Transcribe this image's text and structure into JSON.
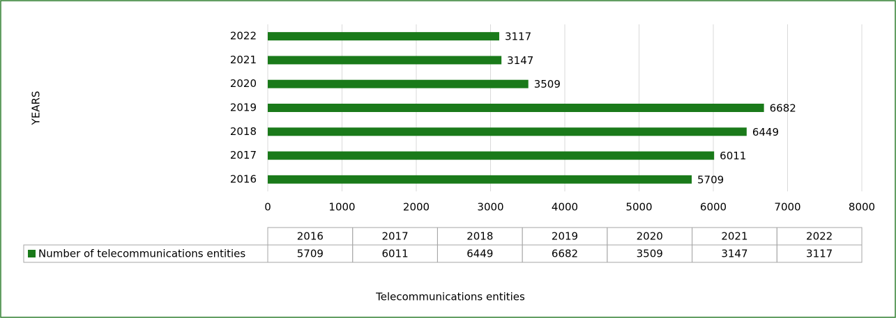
{
  "chart_data": {
    "type": "bar",
    "orientation": "horizontal",
    "categories": [
      "2016",
      "2017",
      "2018",
      "2019",
      "2020",
      "2021",
      "2022"
    ],
    "series": [
      {
        "name": "Number of telecommunications entities",
        "color": "#1a7a1a",
        "values": [
          5709,
          6011,
          6449,
          6682,
          3509,
          3147,
          3117
        ]
      }
    ],
    "xlim": [
      0,
      8000
    ],
    "xticks": [
      0,
      1000,
      2000,
      3000,
      4000,
      5000,
      6000,
      7000,
      8000
    ],
    "grid": true,
    "ylabel": "YEARS",
    "xlabel": "Telecommunications entities",
    "data_table": true
  }
}
